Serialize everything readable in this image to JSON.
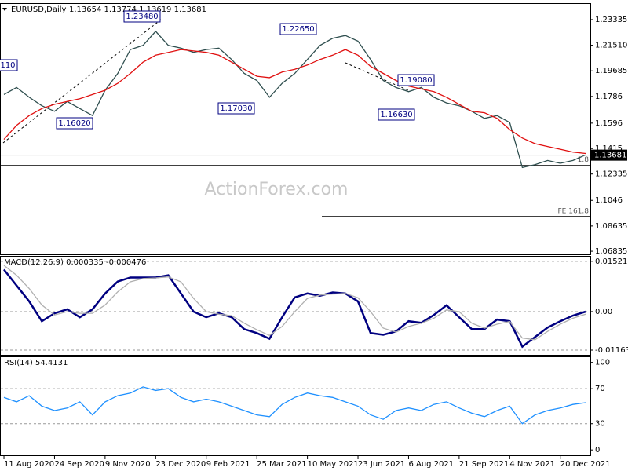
{
  "chart_data": [
    {
      "type": "line",
      "title": "EURUSD,Daily",
      "subtitle": "1.13654 1.13774 1.13619 1.13681",
      "watermark": "ActionForex.com",
      "xlim": [
        -2,
        371
      ],
      "ylim": [
        1.0656,
        1.2445
      ],
      "yticks": [
        {
          "value": 1.23335,
          "label": "1.23335"
        },
        {
          "value": 1.2151,
          "label": "1.21510"
        },
        1.19685,
        1.1786,
        1.1596,
        1.1415,
        1.12335,
        1.1046,
        1.08635,
        1.06835
      ],
      "x": [
        0,
        8,
        16,
        24,
        32,
        40,
        48,
        56,
        64,
        72,
        80,
        88,
        96,
        104,
        112,
        120,
        128,
        136,
        144,
        152,
        160,
        168,
        176,
        184,
        192,
        200,
        208,
        216,
        224,
        232,
        240,
        248,
        256,
        264,
        272,
        280,
        288,
        296,
        304,
        312,
        320,
        328,
        336,
        344,
        352,
        360,
        368
      ],
      "series": [
        {
          "color": "#2f4f4f",
          "values": [
            1.18,
            1.185,
            1.178,
            1.172,
            1.168,
            1.175,
            1.17,
            1.165,
            1.183,
            1.195,
            1.212,
            1.215,
            1.225,
            1.215,
            1.213,
            1.21,
            1.212,
            1.213,
            1.205,
            1.195,
            1.19,
            1.178,
            1.188,
            1.195,
            1.205,
            1.215,
            1.22,
            1.222,
            1.218,
            1.205,
            1.19,
            1.185,
            1.182,
            1.185,
            1.178,
            1.174,
            1.172,
            1.168,
            1.163,
            1.165,
            1.16,
            1.128,
            1.13,
            1.133,
            1.131,
            1.133,
            1.137
          ]
        },
        {
          "color": "#e01010",
          "values": [
            1.148,
            1.158,
            1.165,
            1.17,
            1.173,
            1.175,
            1.177,
            1.18,
            1.183,
            1.188,
            1.195,
            1.203,
            1.208,
            1.21,
            1.212,
            1.211,
            1.21,
            1.208,
            1.203,
            1.198,
            1.193,
            1.192,
            1.196,
            1.198,
            1.201,
            1.205,
            1.208,
            1.212,
            1.208,
            1.2,
            1.195,
            1.19,
            1.186,
            1.184,
            1.182,
            1.178,
            1.173,
            1.168,
            1.167,
            1.163,
            1.155,
            1.149,
            1.145,
            1.143,
            1.141,
            1.139,
            1.138
          ]
        }
      ],
      "last_price": 1.13681,
      "annotations": [
        "1.23480",
        "1.22650",
        "1.17030",
        "1.16020",
        "1.16630",
        "1.19080",
        "110"
      ],
      "levels": [
        {
          "value": 1.1295,
          "label": "1.8"
        },
        {
          "value": 1.0931,
          "label": "FE 161.8"
        }
      ]
    },
    {
      "type": "line",
      "title": "MACD(12,26,9) 0.000335 -0.000476",
      "xlim": [
        -2,
        371
      ],
      "ylim": [
        -0.0133,
        0.0166
      ],
      "yticks": [
        0.015213,
        {
          "value": 0,
          "label": "0.00"
        },
        -0.011638
      ],
      "x": [
        0,
        8,
        16,
        24,
        32,
        40,
        48,
        56,
        64,
        72,
        80,
        88,
        96,
        104,
        112,
        120,
        128,
        136,
        144,
        152,
        160,
        168,
        176,
        184,
        192,
        200,
        208,
        216,
        224,
        232,
        240,
        248,
        256,
        264,
        272,
        280,
        288,
        296,
        304,
        312,
        320,
        328,
        336,
        344,
        352,
        360,
        368
      ],
      "series": [
        {
          "color": "#000080",
          "values": [
            0.0127,
            0.0079,
            0.0031,
            -0.0029,
            -0.0005,
            0.0007,
            -0.0017,
            0.0007,
            0.0055,
            0.0091,
            0.0103,
            0.0103,
            0.0103,
            0.011,
            0.0055,
            0.0,
            -0.0017,
            -0.0005,
            -0.0017,
            -0.0053,
            -0.0065,
            -0.0082,
            -0.0017,
            0.0043,
            0.0055,
            0.0048,
            0.0058,
            0.0055,
            0.0031,
            -0.0065,
            -0.007,
            -0.006,
            -0.0029,
            -0.0034,
            -0.001,
            0.0019,
            -0.0017,
            -0.0053,
            -0.0053,
            -0.0024,
            -0.0029,
            -0.0106,
            -0.0077,
            -0.0048,
            -0.0029,
            -0.0012,
            0.0
          ]
        },
        {
          "color": "#b0b0b0",
          "values": [
            0.014,
            0.011,
            0.007,
            0.002,
            -0.001,
            0.0,
            -0.0005,
            -0.0005,
            0.002,
            0.006,
            0.009,
            0.01,
            0.0102,
            0.0105,
            0.009,
            0.004,
            0.0,
            -0.0008,
            -0.0012,
            -0.0035,
            -0.0055,
            -0.0072,
            -0.0045,
            0.0,
            0.004,
            0.005,
            0.0053,
            0.0055,
            0.0042,
            0.0,
            -0.005,
            -0.0062,
            -0.0045,
            -0.0035,
            -0.002,
            0.0005,
            0.0,
            -0.0035,
            -0.005,
            -0.0038,
            -0.003,
            -0.008,
            -0.0085,
            -0.006,
            -0.0038,
            -0.002,
            -0.0008
          ]
        }
      ]
    },
    {
      "type": "line",
      "title": "RSI(14) 54.4131",
      "xlim": [
        -2,
        371
      ],
      "ylim": [
        -7,
        106
      ],
      "yticks": [
        100,
        70,
        30,
        0
      ],
      "xticks": [
        {
          "value": 0,
          "label": "11 Aug 2020"
        },
        {
          "value": 32,
          "label": "24 Sep 2020"
        },
        {
          "value": 64,
          "label": "9 Nov 2020"
        },
        {
          "value": 96,
          "label": "23 Dec 2020"
        },
        {
          "value": 128,
          "label": "9 Feb 2021"
        },
        {
          "value": 160,
          "label": "25 Mar 2021"
        },
        {
          "value": 192,
          "label": "10 May 2021"
        },
        {
          "value": 224,
          "label": "23 Jun 2021"
        },
        {
          "value": 256,
          "label": "6 Aug 2021"
        },
        {
          "value": 288,
          "label": "21 Sep 2021"
        },
        {
          "value": 320,
          "label": "4 Nov 2021"
        },
        {
          "value": 352,
          "label": "20 Dec 2021"
        }
      ],
      "x": [
        0,
        8,
        16,
        24,
        32,
        40,
        48,
        56,
        64,
        72,
        80,
        88,
        96,
        104,
        112,
        120,
        128,
        136,
        144,
        152,
        160,
        168,
        176,
        184,
        192,
        200,
        208,
        216,
        224,
        232,
        240,
        248,
        256,
        264,
        272,
        280,
        288,
        296,
        304,
        312,
        320,
        328,
        336,
        344,
        352,
        360,
        368
      ],
      "series": [
        {
          "color": "#1e90ff",
          "values": [
            60,
            55,
            62,
            50,
            45,
            48,
            55,
            40,
            55,
            62,
            65,
            72,
            68,
            70,
            60,
            55,
            58,
            55,
            50,
            45,
            40,
            38,
            52,
            60,
            65,
            62,
            60,
            55,
            50,
            40,
            35,
            45,
            48,
            45,
            52,
            55,
            48,
            42,
            38,
            45,
            50,
            30,
            40,
            45,
            48,
            52,
            54
          ]
        }
      ]
    }
  ]
}
